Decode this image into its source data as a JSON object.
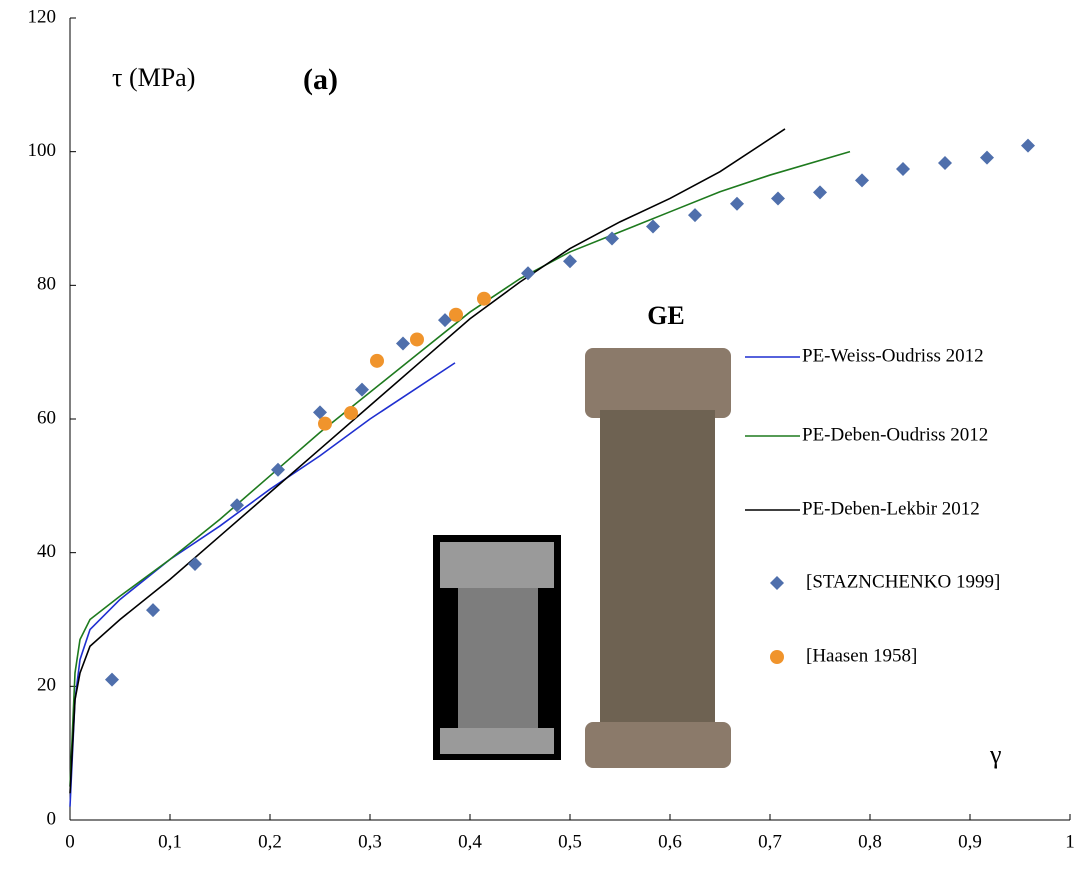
{
  "chart_data": {
    "type": "line",
    "annotations": {
      "y_label": "τ (MPa)",
      "panel": "(a)",
      "x_label": "γ",
      "photo_label": "GE"
    },
    "xlim": [
      0,
      1
    ],
    "ylim": [
      0,
      120
    ],
    "xticks": [
      0,
      {
        "value": 0.1,
        "label": "0,1"
      },
      {
        "value": 0.2,
        "label": "0,2"
      },
      {
        "value": 0.3,
        "label": "0,3"
      },
      {
        "value": 0.4,
        "label": "0,4"
      },
      {
        "value": 0.5,
        "label": "0,5"
      },
      {
        "value": 0.6,
        "label": "0,6"
      },
      {
        "value": 0.7,
        "label": "0,7"
      },
      {
        "value": 0.8,
        "label": "0,8"
      },
      {
        "value": 0.9,
        "label": "0,9"
      },
      1
    ],
    "yticks": [
      0,
      20,
      40,
      60,
      80,
      100,
      120
    ],
    "series": [
      {
        "name": "PE-Weiss-Oudriss 2012",
        "color": "#1f2fd0",
        "marker": "none",
        "x": [
          0,
          0.005,
          0.01,
          0.02,
          0.05,
          0.1,
          0.15,
          0.2,
          0.25,
          0.3,
          0.385
        ],
        "values": [
          2,
          18,
          24,
          28.5,
          33,
          39,
          44,
          49.5,
          54.5,
          60,
          68.4
        ]
      },
      {
        "name": "PE-Deben-Oudriss 2012",
        "color": "#1e7a1e",
        "marker": "none",
        "x": [
          0,
          0.005,
          0.01,
          0.02,
          0.05,
          0.1,
          0.15,
          0.2,
          0.25,
          0.3,
          0.35,
          0.4,
          0.45,
          0.5,
          0.55,
          0.6,
          0.65,
          0.7,
          0.78
        ],
        "values": [
          5,
          22,
          27,
          30,
          33.5,
          39,
          45,
          51.5,
          58,
          64,
          70,
          76,
          81,
          85,
          88,
          91,
          94,
          96.5,
          100
        ]
      },
      {
        "name": "PE-Deben-Lekbir 2012",
        "color": "#000000",
        "marker": "none",
        "x": [
          0,
          0.005,
          0.01,
          0.02,
          0.05,
          0.1,
          0.15,
          0.2,
          0.25,
          0.3,
          0.35,
          0.4,
          0.45,
          0.5,
          0.55,
          0.6,
          0.65,
          0.715
        ],
        "values": [
          4,
          18,
          22,
          26,
          30,
          36,
          42.5,
          49,
          55.5,
          62,
          68.5,
          75,
          80.5,
          85.5,
          89.5,
          93,
          97,
          103.4
        ]
      },
      {
        "name": "[STAZNCHENKO 1999]",
        "color": "#4f6fac",
        "marker": "diamond",
        "x": [
          0.042,
          0.083,
          0.125,
          0.167,
          0.208,
          0.25,
          0.292,
          0.333,
          0.375,
          0.458,
          0.5,
          0.542,
          0.583,
          0.625,
          0.667,
          0.708,
          0.75,
          0.792,
          0.833,
          0.875,
          0.917,
          0.958
        ],
        "values": [
          21,
          31.4,
          38.3,
          47.1,
          52.4,
          61,
          64.4,
          71.3,
          74.8,
          81.8,
          83.6,
          87,
          88.8,
          90.5,
          92.2,
          93,
          93.9,
          95.7,
          97.4,
          98.3,
          99.1,
          100.9
        ]
      },
      {
        "name": "[Haasen 1958]",
        "color": "#f0942c",
        "marker": "circle",
        "x": [
          0.255,
          0.281,
          0.307,
          0.347,
          0.386,
          0.414
        ],
        "values": [
          59.3,
          60.9,
          68.7,
          71.9,
          75.6,
          78
        ]
      }
    ]
  }
}
